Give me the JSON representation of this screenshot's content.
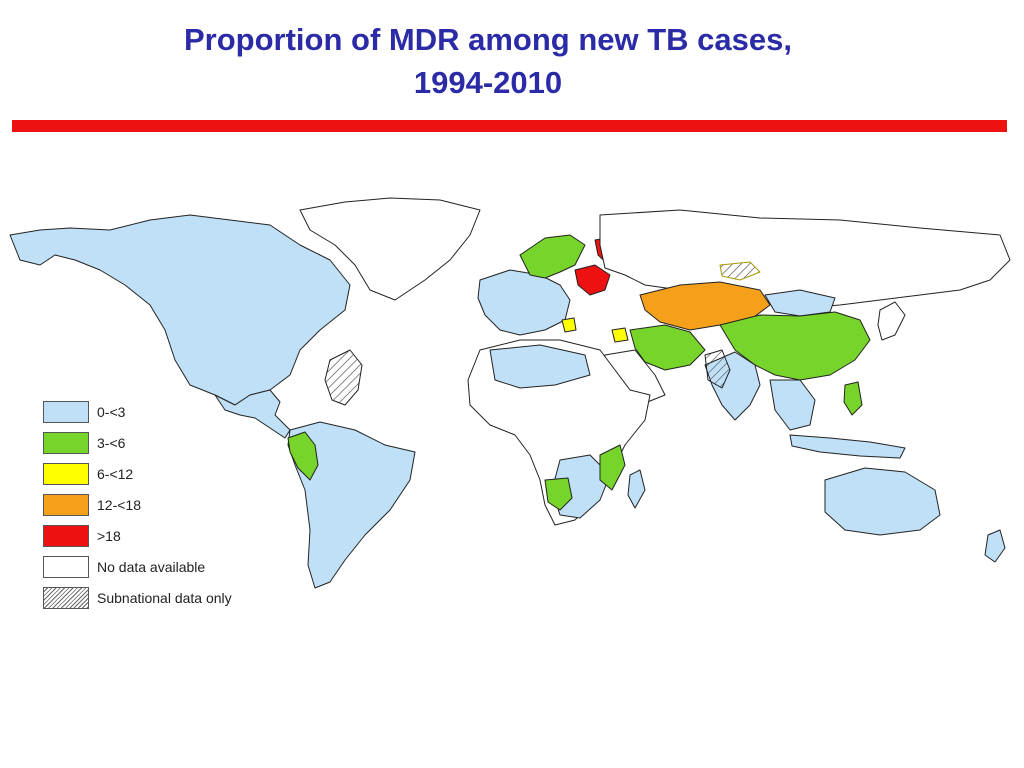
{
  "title": {
    "line1": "Proportion of MDR among new TB cases,",
    "line2": "1994-2010"
  },
  "rule_color": "#ee1111",
  "legend": [
    {
      "label": "0-<3",
      "color": "#bfe0f6"
    },
    {
      "label": "3-<6",
      "color": "#77d42a"
    },
    {
      "label": "6-<12",
      "color": "#ffff00"
    },
    {
      "label": "12-<18",
      "color": "#f5a01a"
    },
    {
      "label": ">18",
      "color": "#ee1111"
    },
    {
      "label": "No data available",
      "color": "#ffffff"
    },
    {
      "label": "Subnational data only",
      "color": "hatched"
    }
  ]
}
